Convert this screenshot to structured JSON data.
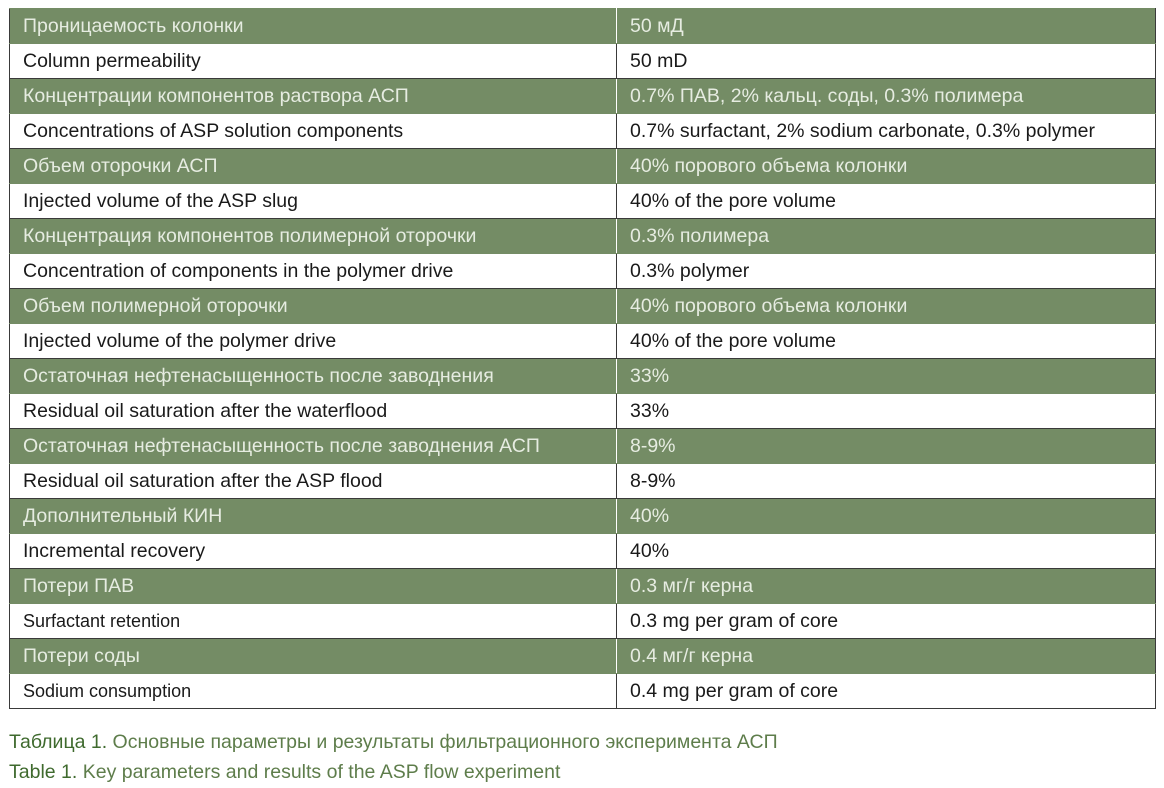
{
  "rows": [
    {
      "lang": "ru",
      "param": "Проницаемость колонки",
      "value": "50 мД"
    },
    {
      "lang": "en",
      "param": "Column permeability",
      "value": "50 mD"
    },
    {
      "lang": "ru",
      "param": "Концентрации компонентов раствора АСП",
      "value": "0.7% ПАВ, 2% кальц. соды, 0.3% полимера"
    },
    {
      "lang": "en",
      "param": "Concentrations of ASP solution components",
      "value": "0.7% surfactant, 2% sodium carbonate, 0.3% polymer"
    },
    {
      "lang": "ru",
      "param": "Объем оторочки АСП",
      "value": "40% порового объема колонки"
    },
    {
      "lang": "en",
      "param": "Injected volume of the ASP slug",
      "value": "40% of the pore volume"
    },
    {
      "lang": "ru",
      "param": "Концентрация компонентов полимерной оторочки",
      "value": "0.3% полимера"
    },
    {
      "lang": "en",
      "param": "Concentration of components in the polymer drive",
      "value": "0.3% polymer"
    },
    {
      "lang": "ru",
      "param": "Объем полимерной оторочки",
      "value": "40% порового объема колонки"
    },
    {
      "lang": "en",
      "param": "Injected volume of the polymer drive",
      "value": "40% of the pore volume"
    },
    {
      "lang": "ru",
      "param": "Остаточная нефтенасыщенность после заводнения",
      "value": "33%"
    },
    {
      "lang": "en",
      "param": "Residual oil saturation after the waterflood",
      "value": "33%"
    },
    {
      "lang": "ru",
      "param": "Остаточная нефтенасыщенность после заводнения АСП",
      "value": "8-9%"
    },
    {
      "lang": "en",
      "param": "Residual oil saturation after the ASP flood",
      "value": "8-9%"
    },
    {
      "lang": "ru",
      "param": "Дополнительный КИН",
      "value": "40%"
    },
    {
      "lang": "en",
      "param": "Incremental recovery",
      "value": "40%"
    },
    {
      "lang": "ru",
      "param": "Потери ПАВ",
      "value": "0.3 мг/г керна"
    },
    {
      "lang": "en",
      "param": "Surfactant retention",
      "value": "0.3 mg per gram of core"
    },
    {
      "lang": "ru",
      "param": "Потери соды",
      "value": "0.4 мг/г керна"
    },
    {
      "lang": "en",
      "param": "Sodium consumption",
      "value": "0.4 mg per gram of core"
    }
  ],
  "caption_ru": {
    "label": "Таблица 1.",
    "text": " Основные параметры и результаты фильтрационного эксперимента АСП"
  },
  "caption_en": {
    "label": "Table 1.",
    "text": " Key parameters and results of the ASP flow experiment"
  },
  "colors": {
    "ru_row_bg": "#748c65",
    "ru_row_text": "#e6ece1",
    "caption": "#5e7d4b"
  }
}
